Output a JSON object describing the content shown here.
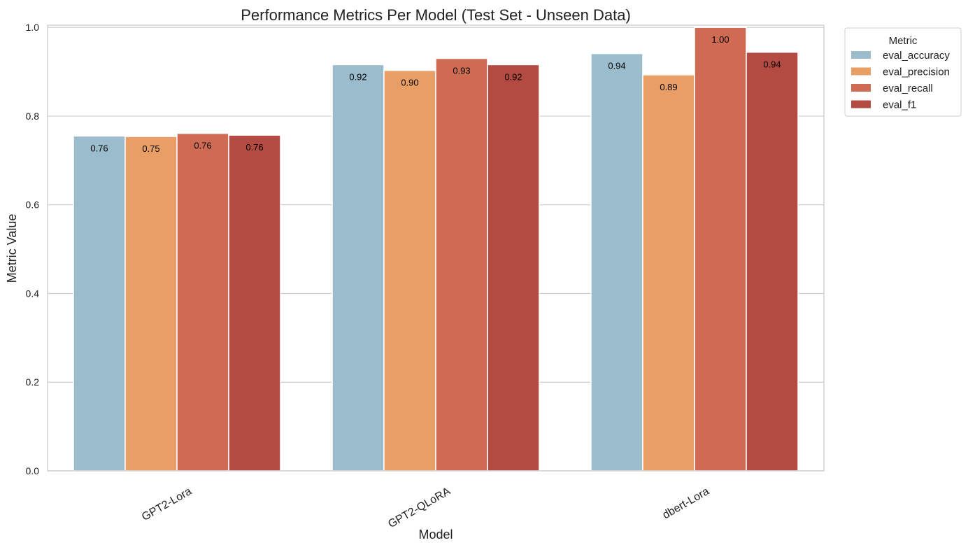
{
  "chart_data": {
    "type": "bar",
    "title": "Performance Metrics Per Model (Test Set - Unseen Data)",
    "xlabel": "Model",
    "ylabel": "Metric Value",
    "categories": [
      "GPT2-Lora",
      "GPT2-QLoRA",
      "dbert-Lora"
    ],
    "ylim": [
      0,
      1.005
    ],
    "yticks": [
      "0.0",
      "0.2",
      "0.4",
      "0.6",
      "0.8",
      "1.0"
    ],
    "grid": true,
    "legend": {
      "title": "Metric",
      "placement": "top-right-outside"
    },
    "series": [
      {
        "name": "eval_accuracy",
        "color": "#9bbccd",
        "values": [
          0.755,
          0.916,
          0.941
        ],
        "labels": [
          "0.76",
          "0.92",
          "0.94"
        ]
      },
      {
        "name": "eval_precision",
        "color": "#e99e66",
        "values": [
          0.754,
          0.903,
          0.893
        ],
        "labels": [
          "0.75",
          "0.90",
          "0.89"
        ]
      },
      {
        "name": "eval_recall",
        "color": "#cf6b52",
        "values": [
          0.761,
          0.93,
          1.0
        ],
        "labels": [
          "0.76",
          "0.93",
          "1.00"
        ]
      },
      {
        "name": "eval_f1",
        "color": "#b34b42",
        "values": [
          0.757,
          0.916,
          0.944
        ],
        "labels": [
          "0.76",
          "0.92",
          "0.94"
        ]
      }
    ]
  }
}
